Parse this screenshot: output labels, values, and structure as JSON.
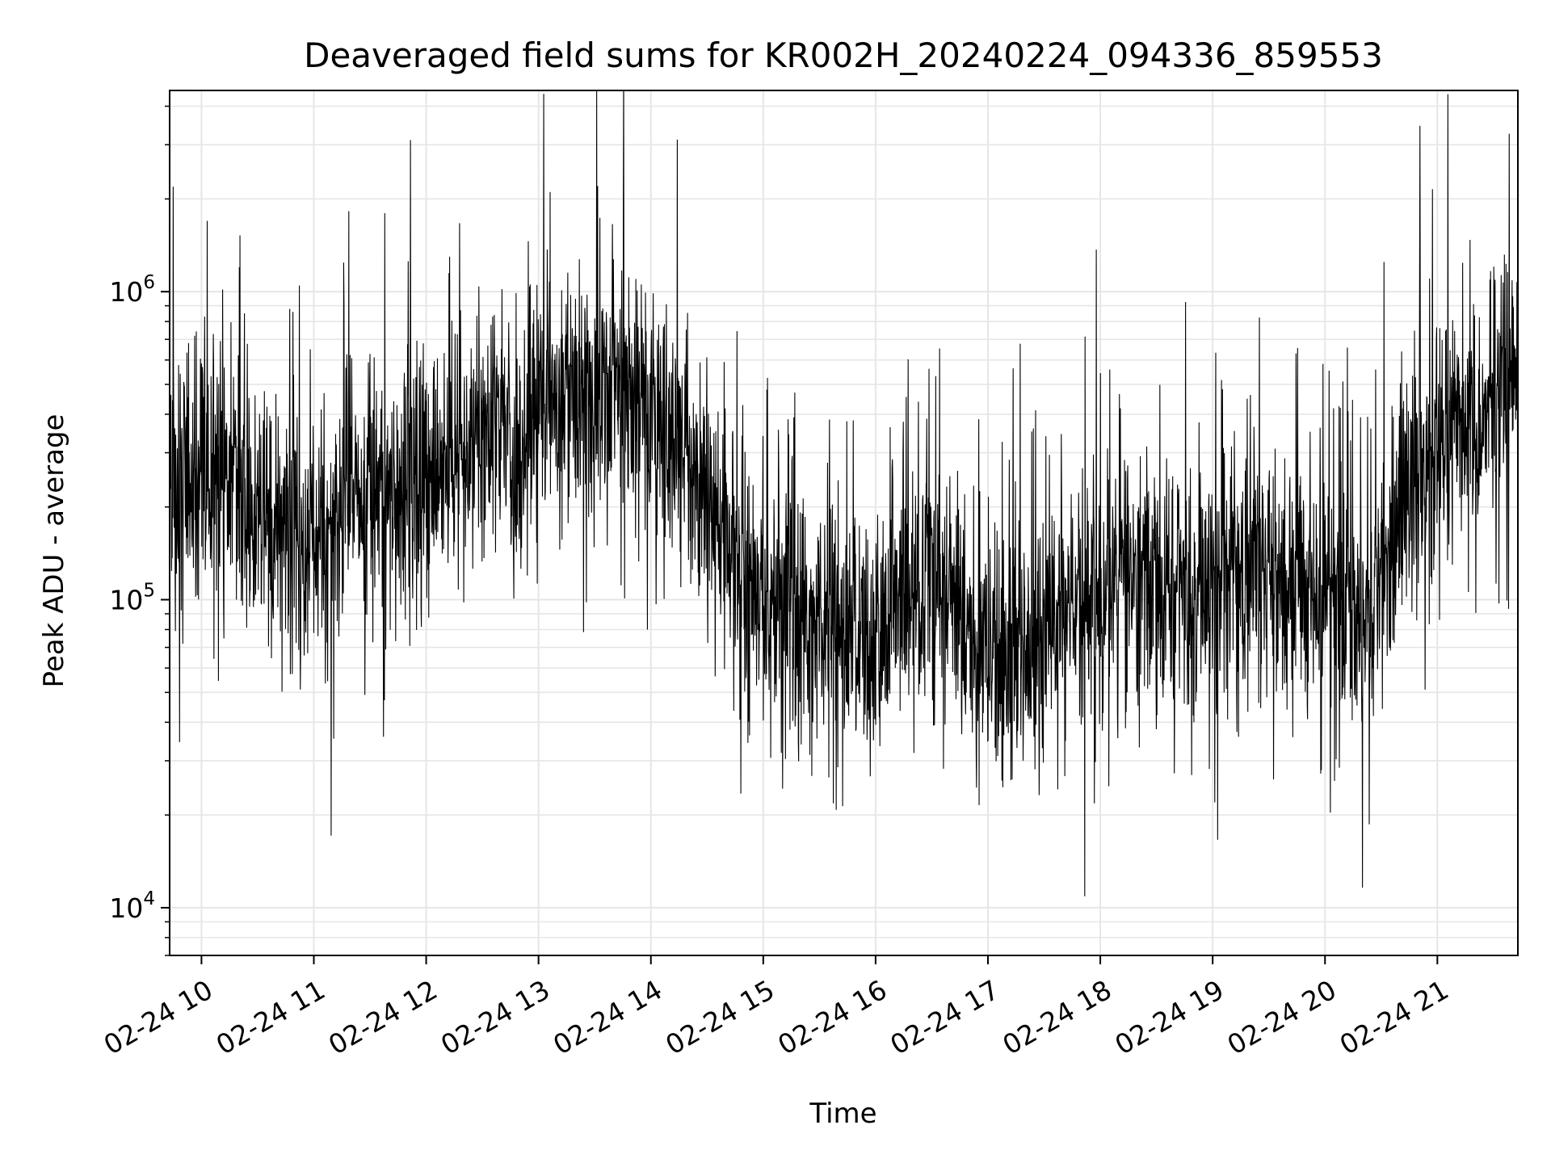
{
  "chart_data": {
    "type": "line",
    "title": "Deaveraged field sums for KR002H_20240224_094336_859553",
    "xlabel": "Time",
    "ylabel": "Peak ADU - average",
    "yscale": "log",
    "xlim": [
      "2024-02-24 09:43",
      "2024-02-24 21:43"
    ],
    "ylim": [
      7000,
      4500000
    ],
    "x_ticks": [
      {
        "value": "2024-02-24 10:00",
        "label": "02-24 10"
      },
      {
        "value": "2024-02-24 11:00",
        "label": "02-24 11"
      },
      {
        "value": "2024-02-24 12:00",
        "label": "02-24 12"
      },
      {
        "value": "2024-02-24 13:00",
        "label": "02-24 13"
      },
      {
        "value": "2024-02-24 14:00",
        "label": "02-24 14"
      },
      {
        "value": "2024-02-24 15:00",
        "label": "02-24 15"
      },
      {
        "value": "2024-02-24 16:00",
        "label": "02-24 16"
      },
      {
        "value": "2024-02-24 17:00",
        "label": "02-24 17"
      },
      {
        "value": "2024-02-24 18:00",
        "label": "02-24 18"
      },
      {
        "value": "2024-02-24 19:00",
        "label": "02-24 19"
      },
      {
        "value": "2024-02-24 20:00",
        "label": "02-24 20"
      },
      {
        "value": "2024-02-24 21:00",
        "label": "02-24 21"
      }
    ],
    "y_ticks": [
      {
        "value": 10000,
        "base": "10",
        "exp": "4"
      },
      {
        "value": 100000,
        "base": "10",
        "exp": "5"
      },
      {
        "value": 1000000,
        "base": "10",
        "exp": "6"
      }
    ],
    "grid": true,
    "line_color": "#000000",
    "grid_color": "#e6e6e6",
    "series": [
      {
        "x": [
          "2024-02-24 09:43",
          "2024-02-24 09:53",
          "2024-02-24 10:03",
          "2024-02-24 10:13",
          "2024-02-24 10:23",
          "2024-02-24 10:33",
          "2024-02-24 10:43",
          "2024-02-24 10:53",
          "2024-02-24 11:03",
          "2024-02-24 11:13",
          "2024-02-24 11:23",
          "2024-02-24 11:33",
          "2024-02-24 11:43",
          "2024-02-24 11:53",
          "2024-02-24 12:03",
          "2024-02-24 12:13",
          "2024-02-24 12:23",
          "2024-02-24 12:33",
          "2024-02-24 12:43",
          "2024-02-24 12:53",
          "2024-02-24 13:03",
          "2024-02-24 13:13",
          "2024-02-24 13:23",
          "2024-02-24 13:33",
          "2024-02-24 13:43",
          "2024-02-24 13:53",
          "2024-02-24 14:03",
          "2024-02-24 14:13",
          "2024-02-24 14:23",
          "2024-02-24 14:33",
          "2024-02-24 14:43",
          "2024-02-24 14:53",
          "2024-02-24 15:03",
          "2024-02-24 15:13",
          "2024-02-24 15:23",
          "2024-02-24 15:33",
          "2024-02-24 15:43",
          "2024-02-24 15:53",
          "2024-02-24 16:03",
          "2024-02-24 16:13",
          "2024-02-24 16:23",
          "2024-02-24 16:33",
          "2024-02-24 16:43",
          "2024-02-24 16:53",
          "2024-02-24 17:03",
          "2024-02-24 17:13",
          "2024-02-24 17:23",
          "2024-02-24 17:33",
          "2024-02-24 17:43",
          "2024-02-24 17:53",
          "2024-02-24 18:03",
          "2024-02-24 18:13",
          "2024-02-24 18:23",
          "2024-02-24 18:33",
          "2024-02-24 18:43",
          "2024-02-24 18:53",
          "2024-02-24 19:03",
          "2024-02-24 19:13",
          "2024-02-24 19:23",
          "2024-02-24 19:33",
          "2024-02-24 19:43",
          "2024-02-24 19:53",
          "2024-02-24 20:03",
          "2024-02-24 20:13",
          "2024-02-24 20:23",
          "2024-02-24 20:33",
          "2024-02-24 20:43",
          "2024-02-24 20:53",
          "2024-02-24 21:03",
          "2024-02-24 21:13",
          "2024-02-24 21:23",
          "2024-02-24 21:33",
          "2024-02-24 21:43"
        ],
        "y": [
          220000,
          240000,
          260000,
          230000,
          200000,
          190000,
          170000,
          160000,
          150000,
          180000,
          210000,
          200000,
          220000,
          250000,
          280000,
          300000,
          310000,
          340000,
          330000,
          360000,
          420000,
          450000,
          480000,
          500000,
          470000,
          430000,
          380000,
          320000,
          270000,
          200000,
          150000,
          110000,
          100000,
          90000,
          85000,
          80000,
          75000,
          70000,
          80000,
          90000,
          100000,
          110000,
          100000,
          80000,
          65000,
          60000,
          70000,
          80000,
          90000,
          100000,
          110000,
          120000,
          115000,
          110000,
          105000,
          100000,
          110000,
          120000,
          130000,
          120000,
          110000,
          105000,
          100000,
          95000,
          90000,
          140000,
          220000,
          270000,
          300000,
          330000,
          380000,
          480000,
          520000
        ]
      }
    ]
  }
}
